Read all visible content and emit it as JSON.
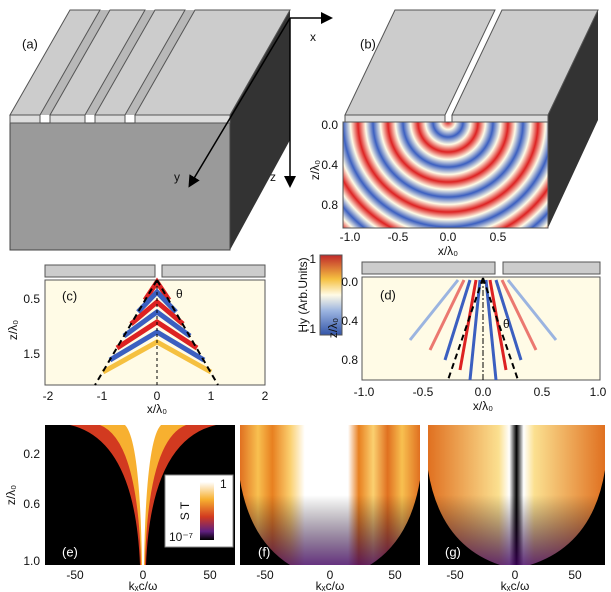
{
  "panel_a": {
    "label": "(a)",
    "axis_x": "x",
    "axis_y": "y",
    "axis_z": "z"
  },
  "panel_b": {
    "label": "(b)",
    "xlabel": "x/λ₀",
    "ylabel": "z/λ₀",
    "xticks": [
      "-1.0",
      "-0.5",
      "0.0",
      "0.5"
    ],
    "yticks": [
      "0.0",
      "0.4",
      "0.8"
    ]
  },
  "panel_c": {
    "label": "(c)",
    "angle": "θ",
    "xlabel": "x/λ₀",
    "ylabel": "z/λ₀",
    "xticks": [
      "-2",
      "-1",
      "0",
      "1",
      "2"
    ],
    "yticks": [
      "0.5",
      "1.5"
    ]
  },
  "colorbar": {
    "label": "Hy (Arb.Units)",
    "ticks": [
      "1",
      "-1"
    ]
  },
  "panel_d": {
    "label": "(d)",
    "angle": "θ",
    "xlabel": "x/λ₀",
    "ylabel": "z/λ₀",
    "xticks": [
      "-1.0",
      "-0.5",
      "0.0",
      "0.5",
      "1.0"
    ],
    "yticks": [
      "0.0",
      "0.4",
      "0.8"
    ]
  },
  "panel_e": {
    "label": "(e)",
    "xlabel": "kₓc/ω",
    "ylabel": "z/λ₀",
    "xticks": [
      "-50",
      "0",
      "50"
    ],
    "yticks": [
      "0.2",
      "0.6",
      "1.0"
    ]
  },
  "colorbar_st": {
    "label": "S T",
    "ticks": [
      "1",
      "10⁻⁷"
    ]
  },
  "panel_f": {
    "label": "(f)",
    "xlabel": "kₓc/ω",
    "xticks": [
      "-50",
      "0",
      "50"
    ]
  },
  "panel_g": {
    "label": "(g)",
    "xlabel": "kₓc/ω",
    "xticks": [
      "-50",
      "0",
      "50"
    ]
  }
}
